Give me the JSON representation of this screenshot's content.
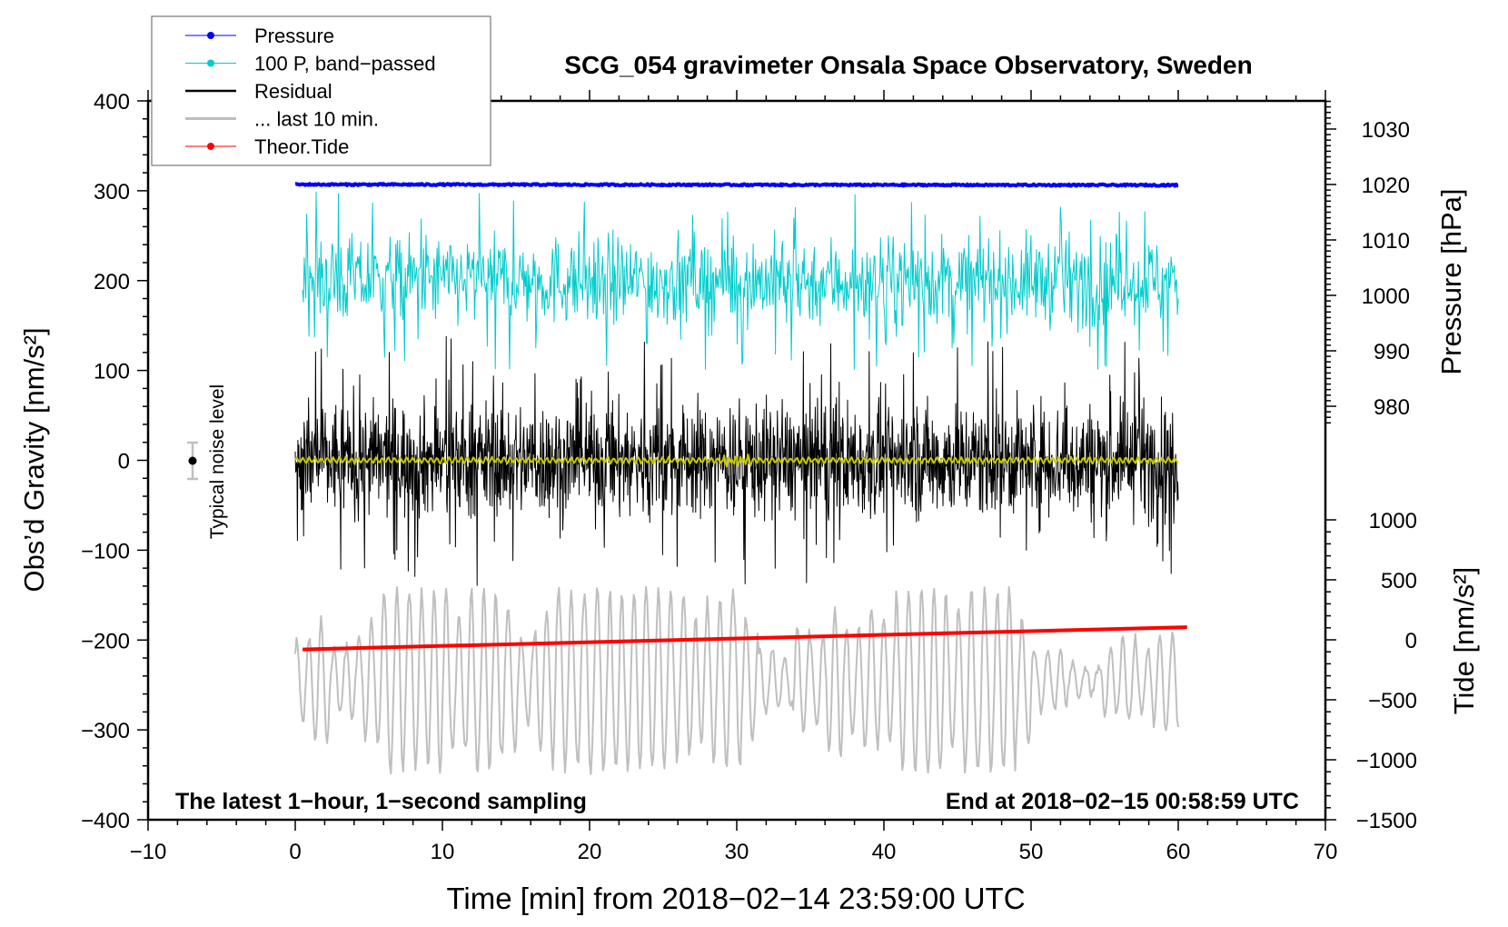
{
  "chart_data": {
    "type": "line",
    "title": "SCG_054 gravimeter Onsala Space Observatory, Sweden",
    "xlabel": "Time [min] from 2018−02−14 23:59:00 UTC",
    "ylabel_left": "Obs’d Gravity [nm/s²]",
    "ylabel_right_top": "Pressure [hPa]",
    "ylabel_right_bottom": "Tide [nm/s²]",
    "xlim": [
      -10,
      70
    ],
    "ylim_left": [
      -400,
      400
    ],
    "x_ticks": [
      "−10",
      "0",
      "10",
      "20",
      "30",
      "40",
      "50",
      "60",
      "70"
    ],
    "x_tick_values": [
      -10,
      0,
      10,
      20,
      30,
      40,
      50,
      60,
      70
    ],
    "y_left_ticks": [
      "400",
      "300",
      "200",
      "100",
      "0",
      "−100",
      "−200",
      "−300",
      "−400"
    ],
    "y_left_tick_values": [
      400,
      300,
      200,
      100,
      0,
      -100,
      -200,
      -300,
      -400
    ],
    "pressure_ticks": [
      "1030",
      "1020",
      "1010",
      "1000",
      "990",
      "980"
    ],
    "pressure_tick_values": [
      1030,
      1020,
      1010,
      1000,
      990,
      980
    ],
    "tide_ticks": [
      "1000",
      "500",
      "0",
      "−500",
      "−1000",
      "−1500"
    ],
    "tide_tick_values": [
      1000,
      500,
      0,
      -500,
      -1000,
      -1500
    ],
    "annotation_left": "The latest 1−hour, 1−second sampling",
    "annotation_right": "End at 2018−02−15 00:58:59 UTC",
    "noise_label": "Typical noise level",
    "noise_level": {
      "x": -7,
      "center": 0,
      "halfwidth": 20
    },
    "legend_position": "top-left",
    "legend": [
      {
        "label": "Pressure",
        "color": "#0000ff",
        "marker": true
      },
      {
        "label": "100 P, band−passed",
        "color": "#00cccc",
        "marker": true
      },
      {
        "label": "Residual",
        "color": "#000000",
        "marker": false
      },
      {
        "label": "... last 10 min.",
        "color": "#bfbfbf",
        "marker": false
      },
      {
        "label": "Theor.Tide",
        "color": "#ff0000",
        "marker": true
      }
    ],
    "series": [
      {
        "name": "Pressure",
        "axis": "pressure_hPa",
        "x_range": [
          0,
          60
        ],
        "level": 1020,
        "variation": 0.3,
        "color": "#0000ff"
      },
      {
        "name": "100 P, band−passed",
        "axis": "gravity_offset",
        "x_range": [
          0,
          60
        ],
        "offset": 200,
        "std": 25,
        "peak": 90,
        "color": "#00cccc"
      },
      {
        "name": "Residual",
        "axis": "gravity",
        "x_range": [
          0,
          60
        ],
        "mean": 0,
        "std": 32,
        "peak": 140,
        "color": "#000000"
      },
      {
        "name": "Residual smoothed",
        "axis": "gravity",
        "x_range": [
          0,
          60
        ],
        "mean": 0,
        "amplitude": 4,
        "color": "#c8c800"
      },
      {
        "name": "... last 10 min.",
        "axis": "gravity_offset",
        "x_range": [
          0,
          60
        ],
        "offset": -245,
        "amplitude": 100,
        "color": "#bfbfbf"
      },
      {
        "name": "Theor.Tide",
        "axis": "tide",
        "x": [
          0.5,
          60.6
        ],
        "y": [
          -80,
          105
        ],
        "color": "#ff0000"
      }
    ]
  }
}
